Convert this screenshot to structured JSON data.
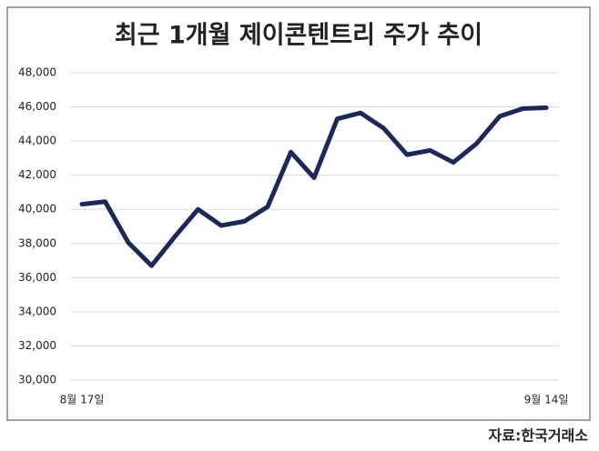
{
  "chart_data": {
    "type": "line",
    "title": "최근 1개월 제이콘텐트리 주가 추이",
    "source": "자료:한국거래소",
    "categories": [
      "8월 17일",
      null,
      null,
      null,
      null,
      null,
      null,
      null,
      null,
      null,
      null,
      null,
      null,
      null,
      null,
      null,
      null,
      null,
      null,
      null,
      "9월 14일"
    ],
    "series": [
      {
        "color": "#1c2858",
        "values": [
          40300,
          40450,
          38050,
          36700,
          38400,
          40000,
          39050,
          39300,
          40150,
          43350,
          41850,
          45300,
          45650,
          44750,
          43200,
          43450,
          42750,
          43850,
          45450,
          45900,
          45950
        ]
      }
    ],
    "ylim": [
      30000,
      48000
    ],
    "yticks": [
      {
        "value": 30000,
        "label": "30,000"
      },
      {
        "value": 32000,
        "label": "32,000"
      },
      {
        "value": 34000,
        "label": "34,000"
      },
      {
        "value": 36000,
        "label": "36,000"
      },
      {
        "value": 38000,
        "label": "38,000"
      },
      {
        "value": 40000,
        "label": "40,000"
      },
      {
        "value": 42000,
        "label": "42,000"
      },
      {
        "value": 44000,
        "label": "44,000"
      },
      {
        "value": 46000,
        "label": "46,000"
      },
      {
        "value": 48000,
        "label": "48,000"
      }
    ],
    "grid": true
  }
}
